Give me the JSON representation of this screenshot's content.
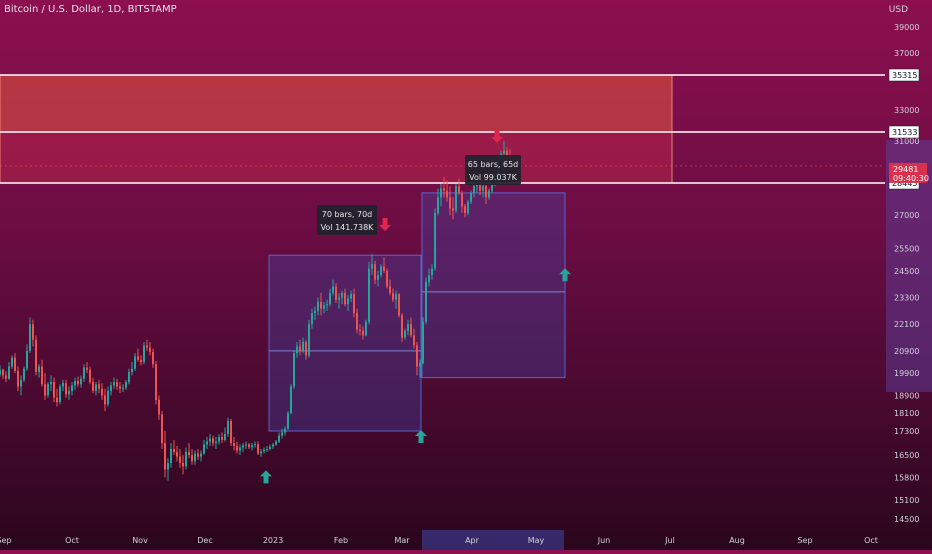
{
  "header": {
    "symbol": "Bitcoin / U.S. Dollar, 1D, BITSTAMP",
    "currency": "USD"
  },
  "colors": {
    "up": "#26a69a",
    "down": "#ef5350",
    "zone_fill": "#f2554a",
    "box_fill": "#3f47a8",
    "line_white": "#ffffff",
    "arrow_up": "#26a69a",
    "arrow_down": "#e0264e"
  },
  "chart_data": {
    "type": "candlestick",
    "title": "Bitcoin / U.S. Dollar, 1D, BITSTAMP",
    "y_axis": {
      "position": "right",
      "ticks": [
        39000,
        37000,
        35000,
        33000,
        31000,
        29000,
        27000,
        25500,
        24500,
        23300,
        22100,
        20900,
        19900,
        18900,
        18100,
        17300,
        16500,
        15800,
        15100,
        14500
      ],
      "tick_labels": [
        "39000",
        "37000",
        "",
        "33000",
        "31000",
        "",
        "27000",
        "25500",
        "24500",
        "23300",
        "22100",
        "20900",
        "19900",
        "18900",
        "18100",
        "17300",
        "16500",
        "15800",
        "15100",
        "14500"
      ]
    },
    "x_axis": {
      "labels": [
        "Sep",
        "Oct",
        "Nov",
        "Dec",
        "2023",
        "Feb",
        "Mar",
        "Apr",
        "May",
        "Jun",
        "Jul",
        "Aug",
        "Sep",
        "Oct"
      ],
      "active": "Apr"
    },
    "price_levels": [
      {
        "value": 35315,
        "label": "35315"
      },
      {
        "value": 31533,
        "label": "31533"
      },
      {
        "value": 28445,
        "label": "28445"
      }
    ],
    "current_price": {
      "value": 29481,
      "label": "29481",
      "countdown": "09:40:30"
    },
    "zones": [
      {
        "top": 35315,
        "bottom": 31533
      },
      {
        "top": 31533,
        "bottom": 28445
      }
    ],
    "measurements": [
      {
        "bars": "70 bars, 70d",
        "vol": "Vol 141.738K",
        "from_price": 17300,
        "to_price": 25200,
        "mid_price": 20900
      },
      {
        "bars": "65 bars, 65d",
        "vol": "Vol 99.037K",
        "from_price": 19700,
        "to_price": 28000,
        "mid_price": 23550
      }
    ],
    "projection_box": {
      "top": 28000,
      "bottom": 19700,
      "mid": 23550
    },
    "arrows": [
      {
        "dir": "up",
        "price": 15800
      },
      {
        "dir": "down",
        "price": 26600
      },
      {
        "dir": "up",
        "price": 17100
      },
      {
        "dir": "down",
        "price": 31300
      },
      {
        "dir": "up",
        "price": 24300
      }
    ],
    "series": [
      {
        "name": "BTCUSD",
        "ohlc": [
          [
            19850,
            20250,
            19750,
            20050
          ],
          [
            20050,
            20100,
            19650,
            19800
          ],
          [
            19800,
            20000,
            19500,
            19650
          ],
          [
            19650,
            20400,
            19600,
            20200
          ],
          [
            20200,
            20700,
            20100,
            20600
          ],
          [
            20600,
            20800,
            19900,
            20000
          ],
          [
            20000,
            20200,
            19100,
            19300
          ],
          [
            19300,
            19800,
            18900,
            19600
          ],
          [
            19600,
            20200,
            19500,
            20100
          ],
          [
            20100,
            21200,
            20000,
            20900
          ],
          [
            20900,
            22400,
            20800,
            22100
          ],
          [
            22100,
            22300,
            21100,
            21400
          ],
          [
            21400,
            21600,
            19800,
            19950
          ],
          [
            19950,
            20300,
            19700,
            20200
          ],
          [
            20200,
            20500,
            19300,
            19400
          ],
          [
            19400,
            19900,
            18700,
            18900
          ],
          [
            18900,
            19500,
            18800,
            19400
          ],
          [
            19400,
            19800,
            19100,
            19500
          ],
          [
            19500,
            19700,
            18600,
            18800
          ],
          [
            18800,
            19200,
            18400,
            18600
          ],
          [
            18600,
            19400,
            18500,
            19300
          ],
          [
            19300,
            19600,
            19100,
            19450
          ],
          [
            19450,
            19600,
            18800,
            18950
          ],
          [
            18950,
            19300,
            18700,
            19100
          ],
          [
            19100,
            19500,
            18900,
            19350
          ],
          [
            19350,
            19700,
            19150,
            19550
          ],
          [
            19550,
            19750,
            19300,
            19400
          ],
          [
            19400,
            19800,
            19250,
            19650
          ],
          [
            19650,
            20300,
            19500,
            20150
          ],
          [
            20150,
            20400,
            19900,
            20050
          ],
          [
            20050,
            20200,
            19400,
            19500
          ],
          [
            19500,
            19700,
            19000,
            19100
          ],
          [
            19100,
            19500,
            18900,
            19400
          ],
          [
            19400,
            19600,
            19000,
            19200
          ],
          [
            19200,
            19450,
            18700,
            18900
          ],
          [
            18900,
            19200,
            18200,
            18500
          ],
          [
            18500,
            19300,
            18400,
            19100
          ],
          [
            19100,
            19500,
            18900,
            19350
          ],
          [
            19350,
            19700,
            19200,
            19500
          ],
          [
            19500,
            19650,
            19150,
            19300
          ],
          [
            19300,
            19500,
            19000,
            19200
          ],
          [
            19200,
            19400,
            19050,
            19250
          ],
          [
            19250,
            19600,
            19150,
            19500
          ],
          [
            19500,
            20100,
            19400,
            19950
          ],
          [
            19950,
            20400,
            19800,
            20100
          ],
          [
            20100,
            20800,
            20000,
            20650
          ],
          [
            20650,
            21000,
            20400,
            20500
          ],
          [
            20500,
            20700,
            20250,
            20400
          ],
          [
            20400,
            21300,
            20300,
            21150
          ],
          [
            21150,
            21400,
            20900,
            21050
          ],
          [
            21050,
            21300,
            20700,
            20850
          ],
          [
            20850,
            21000,
            20150,
            20300
          ],
          [
            20300,
            20450,
            18500,
            18700
          ],
          [
            18700,
            18900,
            17800,
            18050
          ],
          [
            18050,
            18200,
            16700,
            16900
          ],
          [
            16900,
            17300,
            15800,
            16050
          ],
          [
            16050,
            16400,
            15700,
            16250
          ],
          [
            16250,
            16900,
            16100,
            16700
          ],
          [
            16700,
            17000,
            16500,
            16600
          ],
          [
            16600,
            16800,
            16300,
            16450
          ],
          [
            16450,
            16700,
            16100,
            16250
          ],
          [
            16250,
            16500,
            15900,
            16150
          ],
          [
            16150,
            16750,
            16050,
            16600
          ],
          [
            16600,
            16900,
            16400,
            16500
          ],
          [
            16500,
            16700,
            16200,
            16300
          ],
          [
            16300,
            16650,
            16200,
            16550
          ],
          [
            16550,
            16700,
            16350,
            16450
          ],
          [
            16450,
            16650,
            16300,
            16550
          ],
          [
            16550,
            17000,
            16500,
            16850
          ],
          [
            16850,
            17100,
            16700,
            16950
          ],
          [
            16950,
            17200,
            16800,
            17050
          ],
          [
            17050,
            17150,
            16800,
            16900
          ],
          [
            16900,
            17100,
            16700,
            16950
          ],
          [
            16950,
            17200,
            16850,
            17100
          ],
          [
            17100,
            17250,
            16900,
            17000
          ],
          [
            17000,
            17450,
            16950,
            17200
          ],
          [
            17200,
            17900,
            17100,
            17750
          ],
          [
            17750,
            17850,
            16800,
            16900
          ],
          [
            16900,
            17100,
            16650,
            16800
          ],
          [
            16800,
            16950,
            16550,
            16650
          ],
          [
            16650,
            16850,
            16500,
            16750
          ],
          [
            16750,
            16900,
            16600,
            16820
          ],
          [
            16820,
            16950,
            16700,
            16850
          ],
          [
            16850,
            16900,
            16700,
            16760
          ],
          [
            16760,
            16900,
            16650,
            16830
          ],
          [
            16830,
            16950,
            16750,
            16860
          ],
          [
            16860,
            16960,
            16500,
            16550
          ],
          [
            16550,
            16700,
            16450,
            16620
          ],
          [
            16620,
            16750,
            16550,
            16680
          ],
          [
            16680,
            16800,
            16600,
            16700
          ],
          [
            16700,
            16850,
            16650,
            16780
          ],
          [
            16780,
            16900,
            16700,
            16850
          ],
          [
            16850,
            17000,
            16800,
            16950
          ],
          [
            16950,
            17250,
            16900,
            17150
          ],
          [
            17150,
            17400,
            17050,
            17250
          ],
          [
            17250,
            17500,
            17150,
            17400
          ],
          [
            17400,
            18200,
            17350,
            18100
          ],
          [
            18100,
            19400,
            18050,
            19300
          ],
          [
            19300,
            20900,
            19200,
            20800
          ],
          [
            20800,
            21300,
            20600,
            21100
          ],
          [
            21100,
            21400,
            20700,
            20900
          ],
          [
            20900,
            21500,
            20800,
            21300
          ],
          [
            21300,
            21400,
            20500,
            20700
          ],
          [
            20700,
            22300,
            20600,
            22100
          ],
          [
            22100,
            22800,
            21900,
            22600
          ],
          [
            22600,
            22900,
            22300,
            22700
          ],
          [
            22700,
            23300,
            22500,
            23100
          ],
          [
            23100,
            23500,
            22500,
            22800
          ],
          [
            22800,
            23100,
            22600,
            22950
          ],
          [
            22950,
            23200,
            22700,
            23000
          ],
          [
            23000,
            23700,
            22900,
            23500
          ],
          [
            23500,
            24100,
            23400,
            23800
          ],
          [
            23800,
            23950,
            23050,
            23200
          ],
          [
            23200,
            23500,
            22800,
            23300
          ],
          [
            23300,
            23600,
            23000,
            23500
          ],
          [
            23500,
            23700,
            22900,
            23000
          ],
          [
            23000,
            23400,
            22700,
            23250
          ],
          [
            23250,
            23600,
            23100,
            23450
          ],
          [
            23450,
            23700,
            22400,
            22600
          ],
          [
            22600,
            22800,
            21700,
            21850
          ],
          [
            21850,
            22100,
            21600,
            21800
          ],
          [
            21800,
            22000,
            21400,
            21600
          ],
          [
            21600,
            22300,
            21550,
            22200
          ],
          [
            22200,
            24900,
            22100,
            24600
          ],
          [
            24600,
            25250,
            24300,
            24800
          ],
          [
            24800,
            24950,
            23900,
            24100
          ],
          [
            24100,
            24500,
            23800,
            24300
          ],
          [
            24300,
            24800,
            24200,
            24700
          ],
          [
            24700,
            25100,
            24400,
            24500
          ],
          [
            24500,
            24600,
            23700,
            23800
          ],
          [
            23800,
            24100,
            23400,
            23500
          ],
          [
            23500,
            23700,
            23100,
            23200
          ],
          [
            23200,
            23600,
            22800,
            23450
          ],
          [
            23450,
            23500,
            22400,
            22500
          ],
          [
            22500,
            22600,
            21300,
            21500
          ],
          [
            21500,
            21900,
            21400,
            21800
          ],
          [
            21800,
            22300,
            21600,
            22100
          ],
          [
            22100,
            22400,
            21500,
            21600
          ],
          [
            21600,
            21900,
            21000,
            21150
          ],
          [
            21150,
            21300,
            19800,
            20200
          ],
          [
            20200,
            20500,
            19700,
            20350
          ],
          [
            20350,
            22400,
            20300,
            22200
          ],
          [
            22200,
            24200,
            22100,
            24000
          ],
          [
            24000,
            24600,
            23800,
            24300
          ],
          [
            24300,
            24800,
            24100,
            24600
          ],
          [
            24600,
            27300,
            24500,
            27100
          ],
          [
            27100,
            28200,
            27000,
            27800
          ],
          [
            27800,
            28400,
            27400,
            28200
          ],
          [
            28200,
            28800,
            27800,
            28100
          ],
          [
            28100,
            28600,
            27600,
            27800
          ],
          [
            27800,
            28300,
            27000,
            27300
          ],
          [
            27300,
            27800,
            26800,
            27200
          ],
          [
            27200,
            28400,
            27100,
            28300
          ],
          [
            28300,
            28700,
            27900,
            28000
          ],
          [
            28000,
            28100,
            27100,
            27400
          ],
          [
            27400,
            27500,
            26900,
            27100
          ],
          [
            27100,
            27700,
            27000,
            27600
          ],
          [
            27600,
            28100,
            27500,
            28000
          ],
          [
            28000,
            28500,
            27800,
            28300
          ],
          [
            28300,
            28800,
            28000,
            28400
          ],
          [
            28400,
            28600,
            27900,
            28100
          ],
          [
            28100,
            28400,
            27800,
            28300
          ],
          [
            28300,
            28500,
            27500,
            27800
          ],
          [
            27800,
            28200,
            27700,
            28100
          ],
          [
            28100,
            28700,
            28000,
            28500
          ],
          [
            28500,
            28900,
            28300,
            28700
          ],
          [
            28700,
            30000,
            28600,
            29900
          ],
          [
            29900,
            30400,
            29700,
            30200
          ],
          [
            30200,
            31000,
            29800,
            30400
          ],
          [
            30400,
            30600,
            29700,
            30000
          ],
          [
            30000,
            30500,
            29400,
            29481
          ]
        ]
      }
    ]
  }
}
